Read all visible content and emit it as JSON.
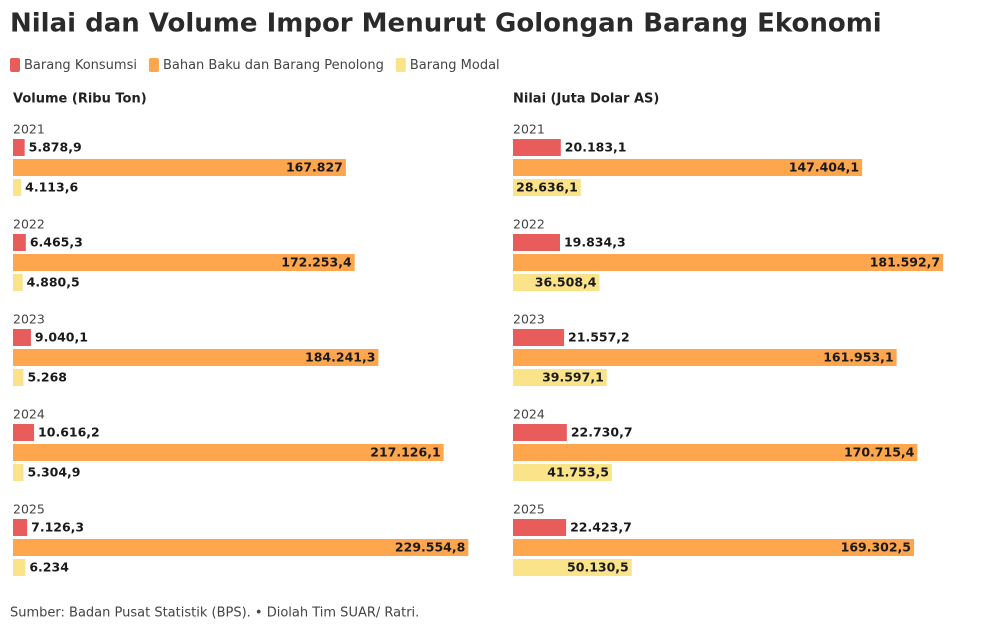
{
  "title": "Nilai dan Volume Impor Menurut Golongan Barang Ekonomi",
  "source": "Sumber: Badan Pusat Statistik (BPS). • Diolah Tim SUAR/ Ratri.",
  "chart_data": [
    {
      "type": "bar",
      "orientation": "horizontal",
      "subtitle": "Volume (Ribu Ton)",
      "categories": [
        "2021",
        "2022",
        "2023",
        "2024",
        "2025"
      ],
      "xlim": [
        0,
        242000
      ],
      "series": [
        {
          "name": "Barang Konsumsi",
          "color": "#e85c5c",
          "values": [
            5878.9,
            6465.3,
            9040.1,
            10616.2,
            7126.3
          ],
          "value_labels": [
            "5.878,9",
            "6.465,3",
            "9.040,1",
            "10.616,2",
            "7.126,3"
          ]
        },
        {
          "name": "Bahan Baku dan Barang Penolong",
          "color": "#fda64e",
          "values": [
            167827,
            172253.4,
            184241.3,
            217126.1,
            229554.8
          ],
          "value_labels": [
            "167.827",
            "172.253,4",
            "184.241,3",
            "217.126,1",
            "229.554,8"
          ]
        },
        {
          "name": "Barang Modal",
          "color": "#fbe38a",
          "values": [
            4113.6,
            4880.5,
            5268,
            5304.9,
            6234
          ],
          "value_labels": [
            "4.113,6",
            "4.880,5",
            "5.268",
            "5.304,9",
            "6.234"
          ]
        }
      ]
    },
    {
      "type": "bar",
      "orientation": "horizontal",
      "subtitle": "Nilai (Juta Dolar AS)",
      "categories": [
        "2021",
        "2022",
        "2023",
        "2024",
        "2025"
      ],
      "xlim": [
        0,
        198000
      ],
      "series": [
        {
          "name": "Barang Konsumsi",
          "color": "#e85c5c",
          "values": [
            20183.1,
            19834.3,
            21557.2,
            22730.7,
            22423.7
          ],
          "value_labels": [
            "20.183,1",
            "19.834,3",
            "21.557,2",
            "22.730,7",
            "22.423,7"
          ]
        },
        {
          "name": "Bahan Baku dan Barang Penolong",
          "color": "#fda64e",
          "values": [
            147404.1,
            181592.7,
            161953.1,
            170715.4,
            169302.5
          ],
          "value_labels": [
            "147.404,1",
            "181.592,7",
            "161.953,1",
            "170.715,4",
            "169.302,5"
          ]
        },
        {
          "name": "Barang Modal",
          "color": "#fbe38a",
          "values": [
            28636.1,
            36508.4,
            39597.1,
            41753.5,
            50130.5
          ],
          "value_labels": [
            "28.636,1",
            "36.508,4",
            "39.597,1",
            "41.753,5",
            "50.130,5"
          ]
        }
      ]
    }
  ]
}
